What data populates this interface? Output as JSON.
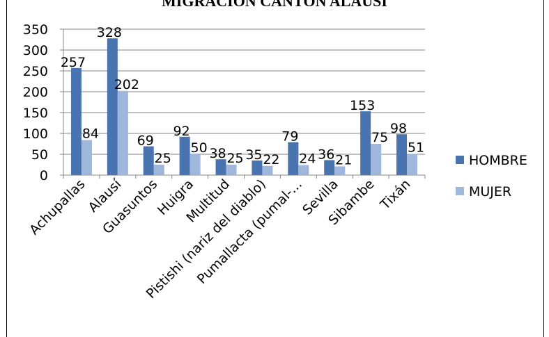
{
  "chart_data": {
    "type": "bar",
    "title": "MIGRACIÓN CANTÓN ALAUSÍ",
    "xlabel": "",
    "ylabel": "",
    "categories": [
      "Achupallas",
      "Alausí",
      "Guasuntos",
      "Huigra",
      "Multitud",
      "Pistishi (nariz del diablo)",
      "Pumallacta (pumal-...",
      "Sevilla",
      "Sibambe",
      "Tixán"
    ],
    "series": [
      {
        "name": "HOMBRE",
        "color": "#4a74b0",
        "values": [
          257,
          328,
          69,
          92,
          38,
          35,
          79,
          36,
          153,
          98
        ]
      },
      {
        "name": "MUJER",
        "color": "#9fb6dd",
        "values": [
          84,
          202,
          25,
          50,
          25,
          22,
          24,
          21,
          75,
          51
        ]
      }
    ],
    "ylim": [
      0,
      350
    ],
    "yticks": [
      0,
      50,
      100,
      150,
      200,
      250,
      300,
      350
    ],
    "grid": true,
    "legend": "right"
  }
}
